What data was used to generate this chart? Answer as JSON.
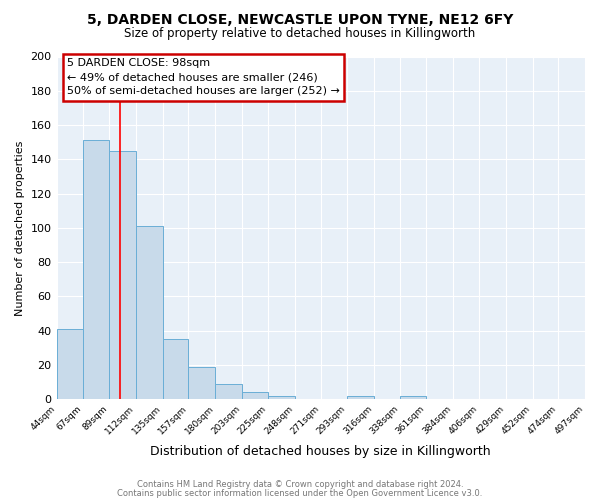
{
  "title": "5, DARDEN CLOSE, NEWCASTLE UPON TYNE, NE12 6FY",
  "subtitle": "Size of property relative to detached houses in Killingworth",
  "xlabel": "Distribution of detached houses by size in Killingworth",
  "ylabel": "Number of detached properties",
  "bar_values": [
    41,
    151,
    145,
    101,
    35,
    19,
    9,
    4,
    2,
    0,
    0,
    2,
    0,
    2,
    0,
    0,
    0,
    0,
    0,
    0
  ],
  "bin_edges": [
    44,
    67,
    89,
    112,
    135,
    157,
    180,
    203,
    225,
    248,
    271,
    293,
    316,
    338,
    361,
    384,
    406,
    429,
    452,
    474,
    497
  ],
  "tick_labels": [
    "44sqm",
    "67sqm",
    "89sqm",
    "112sqm",
    "135sqm",
    "157sqm",
    "180sqm",
    "203sqm",
    "225sqm",
    "248sqm",
    "271sqm",
    "293sqm",
    "316sqm",
    "338sqm",
    "361sqm",
    "384sqm",
    "406sqm",
    "429sqm",
    "452sqm",
    "474sqm",
    "497sqm"
  ],
  "bar_color": "#c8daea",
  "bar_edge_color": "#6aaed6",
  "red_line_x": 98,
  "ylim": [
    0,
    200
  ],
  "yticks": [
    0,
    20,
    40,
    60,
    80,
    100,
    120,
    140,
    160,
    180,
    200
  ],
  "annotation_title": "5 DARDEN CLOSE: 98sqm",
  "annotation_line1": "← 49% of detached houses are smaller (246)",
  "annotation_line2": "50% of semi-detached houses are larger (252) →",
  "annotation_box_color": "#ffffff",
  "annotation_box_edge": "#cc0000",
  "footer1": "Contains HM Land Registry data © Crown copyright and database right 2024.",
  "footer2": "Contains public sector information licensed under the Open Government Licence v3.0.",
  "background_color": "#ffffff",
  "plot_background": "#e8f0f8"
}
